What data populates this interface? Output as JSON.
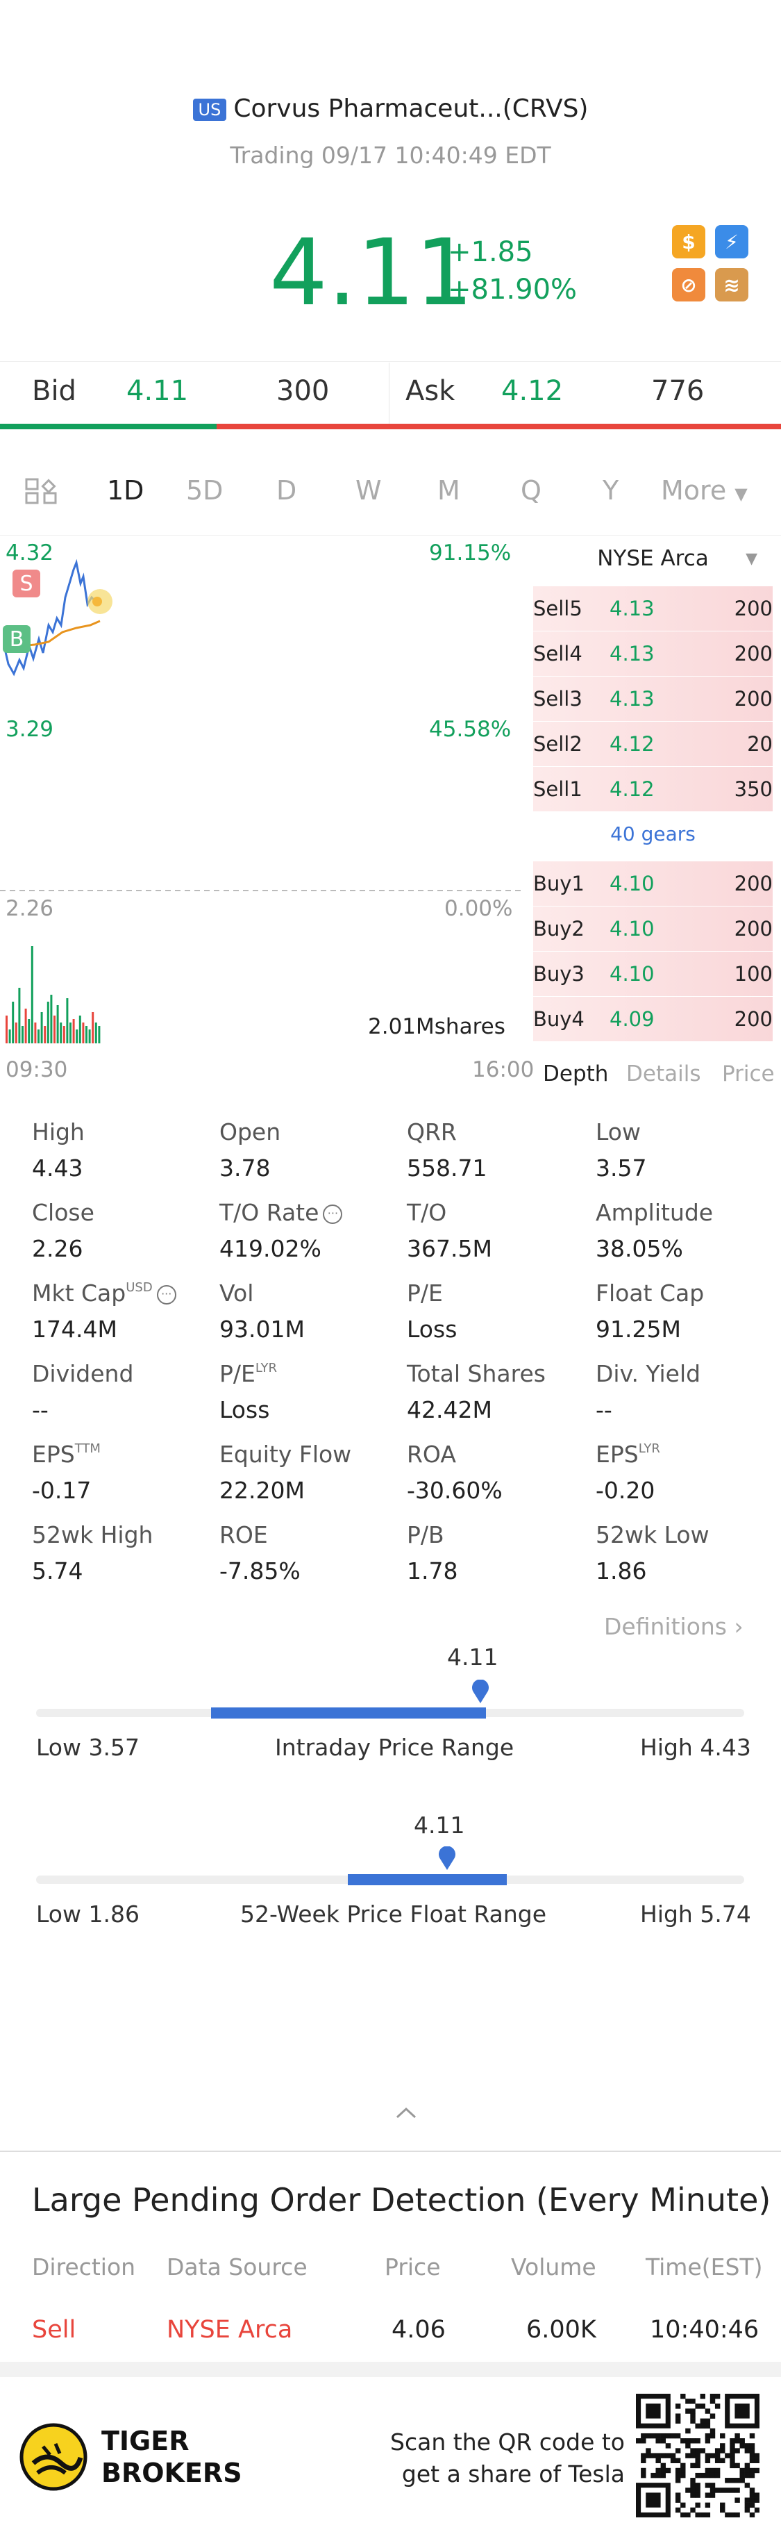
{
  "header": {
    "market_tag": "US",
    "name": "Corvus Pharmaceut...(CRVS)",
    "status": "Trading 09/17 10:40:49 EDT",
    "price": "4.11",
    "change": "+1.85",
    "change_pct": "+81.90%"
  },
  "bid_ask": {
    "bid_label": "Bid",
    "bid_price": "4.11",
    "bid_size": "300",
    "ask_label": "Ask",
    "ask_price": "4.12",
    "ask_size": "776",
    "bid_fraction": 0.277
  },
  "tabs": [
    "1D",
    "5D",
    "D",
    "W",
    "M",
    "Q",
    "Y",
    "More"
  ],
  "chart": {
    "y_top": "4.32",
    "pct_top": "91.15%",
    "y_mid": "3.29",
    "pct_mid": "45.58%",
    "y_base": "2.26",
    "pct_base": "0.00%",
    "volume": "2.01Mshares",
    "t_start": "09:30",
    "t_end": "16:00",
    "marker_sell": "S",
    "marker_buy": "B"
  },
  "order_book": {
    "exchange": "NYSE Arca",
    "sells": [
      {
        "label": "Sell5",
        "price": "4.13",
        "vol": "200"
      },
      {
        "label": "Sell4",
        "price": "4.13",
        "vol": "200"
      },
      {
        "label": "Sell3",
        "price": "4.13",
        "vol": "200"
      },
      {
        "label": "Sell2",
        "price": "4.12",
        "vol": "20"
      },
      {
        "label": "Sell1",
        "price": "4.12",
        "vol": "350"
      }
    ],
    "gears": "40 gears",
    "buys": [
      {
        "label": "Buy1",
        "price": "4.10",
        "vol": "200"
      },
      {
        "label": "Buy2",
        "price": "4.10",
        "vol": "200"
      },
      {
        "label": "Buy3",
        "price": "4.10",
        "vol": "100"
      },
      {
        "label": "Buy4",
        "price": "4.09",
        "vol": "200"
      }
    ],
    "tabs": [
      "Depth",
      "Details",
      "Price"
    ]
  },
  "stats": [
    [
      {
        "l": "High",
        "v": "4.43"
      },
      {
        "l": "Open",
        "v": "3.78"
      },
      {
        "l": "QRR",
        "v": "558.71"
      },
      {
        "l": "Low",
        "v": "3.57"
      }
    ],
    [
      {
        "l": "Close",
        "v": "2.26"
      },
      {
        "l": "T/O Rate",
        "v": "419.02%"
      },
      {
        "l": "T/O",
        "v": "367.5M"
      },
      {
        "l": "Amplitude",
        "v": "38.05%"
      }
    ],
    [
      {
        "l": "Mkt Cap",
        "v": "174.4M"
      },
      {
        "l": "Vol",
        "v": "93.01M"
      },
      {
        "l": "P/E",
        "v": "Loss"
      },
      {
        "l": "Float Cap",
        "v": "91.25M"
      }
    ],
    [
      {
        "l": "Dividend",
        "v": "--"
      },
      {
        "l": "P/E",
        "v": "Loss"
      },
      {
        "l": "Total Shares",
        "v": "42.42M"
      },
      {
        "l": "Div. Yield",
        "v": "--"
      }
    ],
    [
      {
        "l": "EPS",
        "v": "-0.17"
      },
      {
        "l": "Equity Flow",
        "v": "22.20M"
      },
      {
        "l": "ROA",
        "v": "-30.60%"
      },
      {
        "l": "EPS",
        "v": "-0.20"
      }
    ],
    [
      {
        "l": "52wk High",
        "v": "5.74"
      },
      {
        "l": "ROE",
        "v": "-7.85%"
      },
      {
        "l": "P/B",
        "v": "1.78"
      },
      {
        "l": "52wk Low",
        "v": "1.86"
      }
    ]
  ],
  "stat_sups": {
    "usd": "USD",
    "lyr": "LYR",
    "ttm": "TTM"
  },
  "definitions": "Definitions",
  "intraday": {
    "current": "4.11",
    "low": "Low 3.57",
    "title": "Intraday Price Range",
    "high": "High 4.43",
    "open_frac": 0.247,
    "cur_frac": 0.635
  },
  "week52": {
    "current": "4.11",
    "low": "Low 1.86",
    "title": "52-Week Price Float Range",
    "high": "High 5.74",
    "start_frac": 0.44,
    "cur_frac": 0.58,
    "end_frac": 0.665
  },
  "large_order": {
    "title": "Large Pending Order Detection (Every Minute)",
    "headers": [
      "Direction",
      "Data Source",
      "Price",
      "Volume",
      "Time(EST)"
    ],
    "row": {
      "direction": "Sell",
      "source": "NYSE Arca",
      "price": "4.06",
      "volume": "6.00K",
      "time": "10:40:46"
    }
  },
  "footer": {
    "brand1": "TIGER",
    "brand2": "BROKERS",
    "promo1": "Scan the QR code to",
    "promo2": "get a share of Tesla"
  },
  "colors": {
    "green": "#12a05c",
    "red": "#e8453c",
    "blue": "#3b73d6"
  }
}
